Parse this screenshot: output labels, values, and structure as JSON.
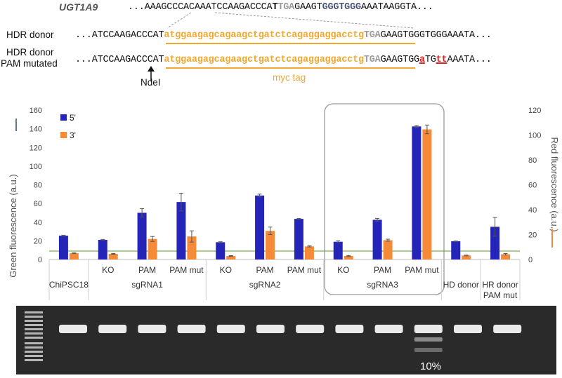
{
  "sequences": {
    "gene_name": "UGT1A9",
    "wt_prefix": "...AAAGCCCACAAATCCAAGACCCA",
    "wt_t": "T",
    "wt_tga": "TGA",
    "wt_mid": "GAAGT",
    "wt_ggt": "GGGTGGG",
    "wt_suffix": "AAATAAGGTA...",
    "hdr_label": "HDR donor",
    "hdr_prefix": "...ATCCAAGACCCAT",
    "myc_seq": "atggaagagcagaagctgatctcagaggaggacctg",
    "hdr_tga": "TGA",
    "hdr_suffix": "GAAGTGGGTGGGAAATA...",
    "pam_label_1": "HDR donor",
    "pam_label_2": "PAM mutated",
    "pam_prefix": "...ATCCAAGACCCAT",
    "pam_tga": "TGA",
    "pam_s1": "GAAGTGG",
    "pam_m1": "a",
    "pam_s2": "TG",
    "pam_m2": "tt",
    "pam_s3": "AAATA...",
    "ndel_label": "NdeI",
    "myc_label": "myc tag"
  },
  "colors": {
    "series_5": "#2424b8",
    "series_3": "#f58a38",
    "myc": "#f0a830",
    "mutation": "#e02020",
    "threshold_line": "#5a9a2a"
  },
  "chart_data": {
    "type": "bar",
    "title": "",
    "ylabel_left": "Green fluorescence (a.u.)",
    "ylabel_right": "Red fluorescence (a.u.)",
    "ylim_left": [
      0,
      160
    ],
    "ylim_right": [
      0,
      120
    ],
    "yticks_left": [
      "0",
      "20",
      "40",
      "60",
      "80",
      "100",
      "120",
      "140",
      "160"
    ],
    "yticks_right": [
      "0",
      "20",
      "40",
      "60",
      "80",
      "100",
      "120"
    ],
    "threshold": 9,
    "legend_position": "top-left",
    "categories": [
      "",
      "KO",
      "PAM",
      "PAM mut",
      "KO",
      "PAM",
      "PAM mut",
      "KO",
      "PAM",
      "PAM mut",
      "",
      ""
    ],
    "groups": [
      {
        "label": "ChiPSC18",
        "span": 1
      },
      {
        "label": "sgRNA1",
        "span": 3
      },
      {
        "label": "sgRNA2",
        "span": 3
      },
      {
        "label": "sgRNA3",
        "span": 3
      },
      {
        "label": "HD donor",
        "span": 1
      },
      {
        "label": "HR donor PAM mut",
        "span": 1
      }
    ],
    "series": [
      {
        "name": "5'",
        "axis": "left",
        "values": [
          25.5,
          21,
          50,
          61.5,
          18.5,
          68.5,
          43.5,
          19,
          42.5,
          142.5,
          19.5,
          35
        ],
        "errors": [
          0.5,
          0.5,
          4.5,
          9.5,
          0.5,
          1.5,
          0.5,
          1,
          1.5,
          1,
          0.3,
          10
        ]
      },
      {
        "name": "3'",
        "axis": "right",
        "values": [
          5,
          4.5,
          16.5,
          18.5,
          2.8,
          23,
          10.5,
          2.8,
          15.5,
          104.5,
          3.2,
          4.2
        ],
        "errors": [
          0.3,
          0.3,
          2,
          4.5,
          0.3,
          3,
          0.4,
          0.4,
          0.8,
          3.5,
          0.3,
          0.6
        ]
      }
    ]
  },
  "gel": {
    "percent_label": "10%"
  }
}
